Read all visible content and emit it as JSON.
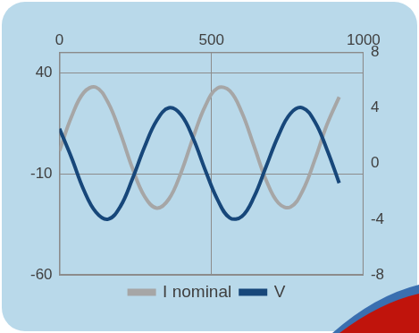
{
  "chart_data": {
    "type": "line",
    "x": [
      0,
      40,
      80,
      120,
      160,
      200,
      240,
      280,
      320,
      360,
      400,
      440,
      480,
      520,
      560,
      600,
      640,
      680,
      720,
      760,
      800,
      840,
      880,
      920
    ],
    "series": [
      {
        "name": "I nominal",
        "color": "#a6a6a6",
        "values": [
          1.3,
          18.3,
          30.1,
          32.7,
          25.1,
          10.2,
          -7.3,
          -21.3,
          -27.0,
          -22.5,
          -9.4,
          8.0,
          23.6,
          32.3,
          31.0,
          20.2,
          3.6,
          -13.3,
          -24.5,
          -26.5,
          -18.4,
          -3.1,
          14.3,
          27.9
        ]
      },
      {
        "name": "V",
        "color": "#17477a",
        "axis": "y2",
        "values": [
          2.5,
          0.4,
          -1.9,
          -3.5,
          -4.0,
          -3.1,
          -1.1,
          1.2,
          3.1,
          4.0,
          3.5,
          1.8,
          -0.5,
          -2.6,
          -3.9,
          -3.8,
          -2.4,
          -0.2,
          2.0,
          3.6,
          4.0,
          3.0,
          1.0,
          -1.4
        ]
      }
    ],
    "xlim": [
      0,
      1000
    ],
    "xticks": [
      0,
      500,
      1000
    ],
    "ylim": [
      -60,
      50
    ],
    "yticks": [
      -60,
      -10,
      40
    ],
    "y2lim": [
      -8,
      8
    ],
    "y2ticks": [
      -8,
      -4,
      0,
      4,
      8
    ],
    "grid": true,
    "legend": "bottom"
  }
}
